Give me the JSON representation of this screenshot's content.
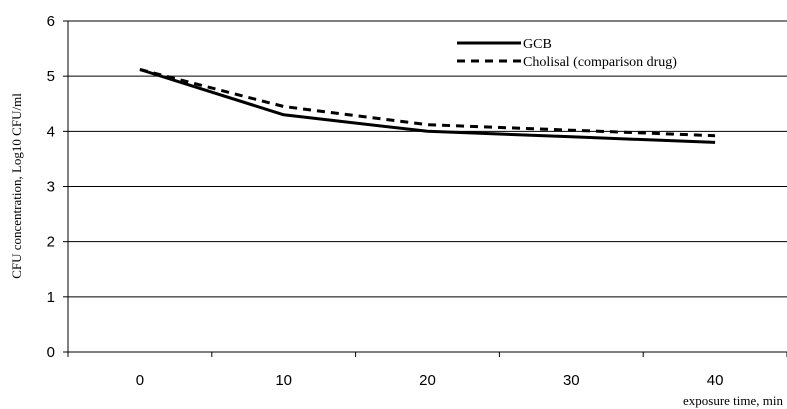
{
  "chart_data": {
    "type": "line",
    "title": "",
    "xlabel": "exposure time, min",
    "ylabel": "CFU concentration, Log10 CFU/ml",
    "x_ticks": [
      "0",
      "10",
      "20",
      "30",
      "40"
    ],
    "y_ticks": [
      "0",
      "1",
      "2",
      "3",
      "4",
      "5",
      "6"
    ],
    "xlim": [
      -5,
      45
    ],
    "ylim": [
      0,
      6
    ],
    "grid": "horizontal",
    "legend_position": "top-right",
    "series": [
      {
        "name": "GCB",
        "style": "solid",
        "color": "#000000",
        "x": [
          0,
          10,
          20,
          30,
          40
        ],
        "y": [
          5.12,
          4.3,
          4.0,
          3.9,
          3.8
        ]
      },
      {
        "name": "Cholisal (comparison drug)",
        "style": "dashed",
        "color": "#000000",
        "x": [
          0,
          10,
          20,
          30,
          40
        ],
        "y": [
          5.12,
          4.45,
          4.12,
          4.02,
          3.92
        ]
      }
    ]
  }
}
